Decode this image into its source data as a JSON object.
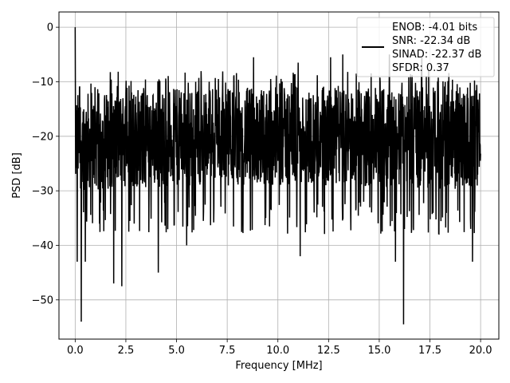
{
  "chart_data": {
    "type": "line",
    "title": "",
    "xlabel": "Frequency [MHz]",
    "ylabel": "PSD [dB]",
    "xlim": [
      -0.8,
      20.9
    ],
    "ylim": [
      -57.2,
      2.8
    ],
    "xticks": [
      0.0,
      2.5,
      5.0,
      7.5,
      10.0,
      12.5,
      15.0,
      17.5,
      20.0
    ],
    "xtick_labels": [
      "0.0",
      "2.5",
      "5.0",
      "7.5",
      "10.0",
      "12.5",
      "15.0",
      "17.5",
      "20.0"
    ],
    "yticks": [
      0,
      -10,
      -20,
      -30,
      -40,
      -50
    ],
    "ytick_labels": [
      "0",
      "−10",
      "−20",
      "−30",
      "−40",
      "−50"
    ],
    "grid": true,
    "legend_position": "top-right",
    "series": [
      {
        "color": "#000000",
        "x_range": [
          0.0,
          20.0
        ],
        "values_note_shape": "dense noise floor",
        "y_band": [
          -30,
          -12
        ],
        "peaks": [
          {
            "x": 0.0,
            "y": 0.0
          }
        ],
        "dips": [
          {
            "x": 0.1,
            "y": -43
          },
          {
            "x": 0.3,
            "y": -54
          },
          {
            "x": 0.5,
            "y": -43
          },
          {
            "x": 1.9,
            "y": -47
          },
          {
            "x": 2.3,
            "y": -47.5
          },
          {
            "x": 4.1,
            "y": -45
          },
          {
            "x": 5.5,
            "y": -40
          },
          {
            "x": 11.1,
            "y": -42
          },
          {
            "x": 15.8,
            "y": -43
          },
          {
            "x": 16.2,
            "y": -54.5
          },
          {
            "x": 19.6,
            "y": -43
          }
        ],
        "highs": [
          {
            "x": 8.8,
            "y": -5.5
          },
          {
            "x": 11.0,
            "y": -6.5
          },
          {
            "x": 12.6,
            "y": -5.5
          },
          {
            "x": 13.2,
            "y": -5
          },
          {
            "x": 15.5,
            "y": -5
          },
          {
            "x": 17.1,
            "y": -5.5
          }
        ]
      }
    ],
    "legend_lines": [
      "ENOB: -4.01 bits",
      "SNR: -22.34 dB",
      "SINAD: -22.37 dB",
      "SFDR: 0.37"
    ]
  }
}
